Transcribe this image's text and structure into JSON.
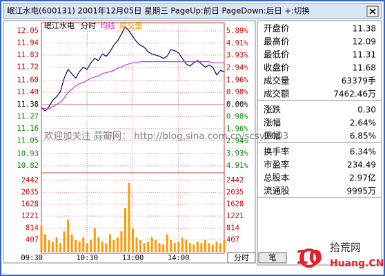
{
  "window": {
    "title": "岷江水电(600131) 2001年12月05日 星期三 PageUp:前日 PageDown:后日 +:切换"
  },
  "chart_data": [
    {
      "type": "line",
      "title": "岷江水电",
      "x": [
        0,
        5,
        10,
        15,
        20,
        25,
        30,
        35,
        40,
        45,
        50,
        55,
        60,
        65,
        70,
        75,
        80,
        85,
        90,
        95,
        100,
        105,
        110,
        115,
        120,
        125,
        130,
        135,
        140,
        145,
        150,
        155,
        160,
        165,
        170,
        175,
        180,
        185,
        190,
        195,
        200,
        205,
        210,
        215,
        220,
        225,
        230,
        235,
        240
      ],
      "xlim": [
        0,
        240
      ],
      "series": [
        {
          "name": "分时",
          "color": "#000066",
          "values": [
            11.35,
            11.32,
            11.36,
            11.42,
            11.45,
            11.5,
            11.62,
            11.7,
            11.66,
            11.62,
            11.68,
            11.72,
            11.7,
            11.76,
            11.8,
            11.78,
            11.84,
            11.82,
            11.86,
            11.92,
            11.96,
            12.02,
            12.09,
            12.05,
            12.0,
            11.95,
            11.92,
            11.9,
            11.86,
            11.84,
            11.83,
            11.82,
            11.8,
            11.82,
            11.88,
            11.87,
            11.85,
            11.8,
            11.75,
            11.73,
            11.76,
            11.78,
            11.75,
            11.72,
            11.74,
            11.72,
            11.65,
            11.69,
            11.68
          ]
        },
        {
          "name": "均线",
          "color": "#cc33cc",
          "values": [
            11.35,
            11.34,
            11.34,
            11.36,
            11.38,
            11.4,
            11.44,
            11.49,
            11.52,
            11.55,
            11.57,
            11.58,
            11.6,
            11.62,
            11.63,
            11.64,
            11.66,
            11.67,
            11.68,
            11.69,
            11.71,
            11.72,
            11.74,
            11.75,
            11.76,
            11.76,
            11.77,
            11.77,
            11.77,
            11.77,
            11.77,
            11.77,
            11.77,
            11.77,
            11.77,
            11.77,
            11.77,
            11.77,
            11.77,
            11.77,
            11.77,
            11.77,
            11.77,
            11.77,
            11.77,
            11.76,
            11.76,
            11.76,
            11.76
          ]
        }
      ],
      "ylim": [
        10.82,
        12.05
      ],
      "yticks": [
        12.05,
        11.94,
        11.83,
        11.72,
        {
          "value": 11.6,
          "label": "11.60"
        },
        11.49,
        11.38,
        11.27,
        11.16,
        11.05,
        10.93,
        10.82
      ],
      "y2lim": [
        -4.91,
        5.89
      ],
      "y2ticks": [
        {
          "value": 5.89,
          "label": "5.89%"
        },
        {
          "value": 4.91,
          "label": "4.91%"
        },
        {
          "value": 3.93,
          "label": "3.93%"
        },
        {
          "value": 2.94,
          "label": "2.94%"
        },
        {
          "value": 1.96,
          "label": "1.96%"
        },
        {
          "value": 0.98,
          "label": "0.98%"
        },
        {
          "value": 0,
          "label": "0.00%"
        },
        {
          "value": -0.98,
          "label": "0.98%"
        },
        {
          "value": -1.96,
          "label": "1.96%"
        },
        {
          "value": -2.94,
          "label": "2.94%"
        },
        {
          "value": -3.93,
          "label": "3.93%"
        },
        {
          "value": -4.91,
          "label": "4.91%"
        }
      ],
      "grid": true
    },
    {
      "type": "bar",
      "x": [
        0,
        5,
        10,
        15,
        20,
        25,
        30,
        35,
        40,
        45,
        50,
        55,
        60,
        65,
        70,
        75,
        80,
        85,
        90,
        95,
        100,
        105,
        110,
        115,
        120,
        125,
        130,
        135,
        140,
        145,
        150,
        155,
        160,
        165,
        170,
        175,
        180,
        185,
        190,
        195,
        200,
        205,
        210,
        215,
        220,
        225,
        230,
        235,
        240
      ],
      "xlim": [
        0,
        240
      ],
      "xticks": [
        {
          "value": 0,
          "label": "09:30"
        },
        {
          "value": 60,
          "label": "10:30"
        },
        {
          "value": 120,
          "label": "13:00"
        },
        {
          "value": 180,
          "label": "14:00"
        }
      ],
      "series": [
        {
          "name": "成交量",
          "color": "#ff9900",
          "values": [
            900,
            600,
            400,
            350,
            500,
            300,
            700,
            1100,
            600,
            400,
            350,
            500,
            300,
            400,
            800,
            500,
            350,
            300,
            600,
            400,
            500,
            700,
            1500,
            2350,
            800,
            500,
            400,
            300,
            350,
            500,
            400,
            300,
            250,
            600,
            400,
            300,
            350,
            500,
            400,
            300,
            250,
            350,
            300,
            400,
            300,
            250,
            350,
            300,
            400
          ]
        }
      ],
      "ylim": [
        0,
        2442
      ],
      "yticks": [
        2442,
        2035,
        1628,
        1221,
        814,
        407
      ],
      "grid": true
    }
  ],
  "tabs": [
    "分时",
    "笔"
  ],
  "quote": {
    "groups": [
      [
        {
          "label": "开盘价",
          "value": "11.38"
        },
        {
          "label": "最高价",
          "value": "12.09"
        },
        {
          "label": "最低价",
          "value": "11.31"
        },
        {
          "label": "收盘价",
          "value": "11.68"
        },
        {
          "label": "成交量",
          "value": "63379手"
        },
        {
          "label": "成交额",
          "value": "7462.46万"
        }
      ],
      [
        {
          "label": "涨跌",
          "value": "0.30"
        },
        {
          "label": "涨幅",
          "value": "2.64%"
        },
        {
          "label": "振幅",
          "value": "6.85%"
        }
      ],
      [
        {
          "label": "换手率",
          "value": "6.34%"
        },
        {
          "label": "市盈率",
          "value": "234.49"
        },
        {
          "label": "总股本",
          "value": "2.97亿"
        },
        {
          "label": "流通股",
          "value": "9995万"
        }
      ]
    ]
  },
  "watermark": "欢迎加关注 蒜瓣网： http://blog.sina.com.cn/scsy2003",
  "logo": {
    "number": "10",
    "name": "拾荒网",
    "domain": "Huang.CN"
  }
}
